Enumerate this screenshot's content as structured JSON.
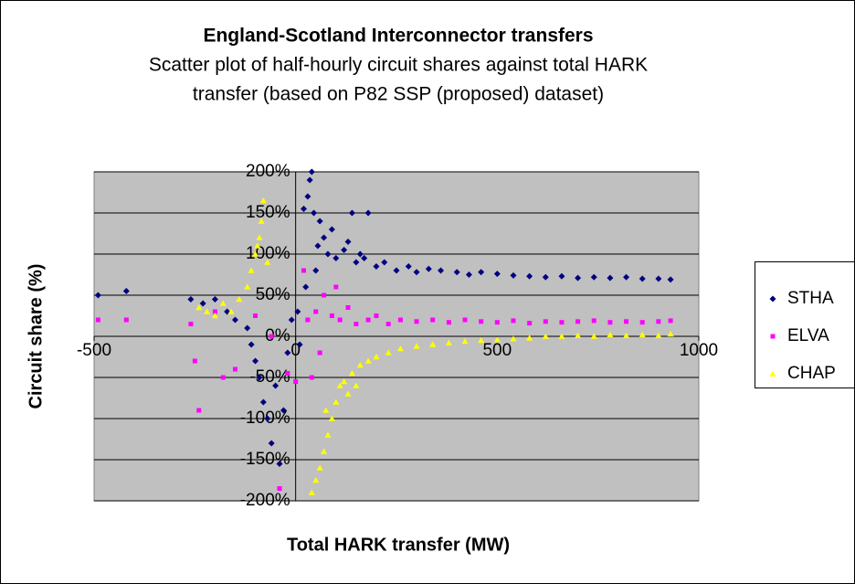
{
  "chart_data": {
    "type": "scatter",
    "title": "England-Scotland Interconnector transfers",
    "subtitle": [
      "Scatter plot of half-hourly circuit shares against total HARK",
      "transfer (based on P82 SSP (proposed) dataset)"
    ],
    "x_label": "Total HARK transfer (MW)",
    "y_label": "Circuit share (%)",
    "xlim": [
      -500,
      1000
    ],
    "xticks": [
      -500,
      0,
      500,
      1000
    ],
    "ylim": [
      -200,
      200
    ],
    "yticks": [
      {
        "value": 200,
        "label": "200%"
      },
      {
        "value": 150,
        "label": "150%"
      },
      {
        "value": 100,
        "label": "100%"
      },
      {
        "value": 50,
        "label": "50%"
      },
      {
        "value": 0,
        "label": "0%"
      },
      {
        "value": -50,
        "label": "-50%"
      },
      {
        "value": -100,
        "label": "-100%"
      },
      {
        "value": -150,
        "label": "-150%"
      },
      {
        "value": -200,
        "label": "-200%"
      }
    ],
    "grid": true,
    "legend": "right",
    "series": [
      {
        "name": "STHA",
        "color": "#000080",
        "marker": "diamond",
        "x": [
          -490,
          -420,
          -260,
          -230,
          -200,
          -170,
          -150,
          -120,
          -110,
          -100,
          -90,
          -80,
          -70,
          -60,
          -40,
          -50,
          -30,
          -20,
          40,
          35,
          30,
          45,
          20,
          60,
          70,
          55,
          80,
          90,
          100,
          120,
          130,
          150,
          160,
          180,
          200,
          220,
          250,
          280,
          300,
          330,
          360,
          400,
          430,
          460,
          500,
          540,
          580,
          620,
          660,
          700,
          740,
          780,
          820,
          860,
          900,
          930,
          10,
          5,
          25,
          -10,
          50,
          140,
          170
        ],
        "values": [
          50,
          55,
          45,
          40,
          45,
          30,
          20,
          10,
          -10,
          -30,
          -50,
          -80,
          -100,
          -130,
          -155,
          -60,
          -90,
          -20,
          200,
          190,
          170,
          150,
          155,
          140,
          120,
          110,
          100,
          130,
          95,
          105,
          115,
          90,
          100,
          150,
          85,
          90,
          80,
          85,
          78,
          82,
          80,
          78,
          75,
          78,
          76,
          74,
          73,
          72,
          73,
          71,
          72,
          71,
          72,
          70,
          70,
          69,
          -10,
          30,
          60,
          20,
          80,
          150,
          95
        ]
      },
      {
        "name": "ELVA",
        "color": "#ff00ff",
        "marker": "square",
        "x": [
          -490,
          -420,
          -260,
          -250,
          -240,
          -200,
          -180,
          -150,
          -100,
          -60,
          -40,
          -20,
          0,
          20,
          30,
          50,
          70,
          90,
          110,
          130,
          150,
          180,
          200,
          230,
          260,
          300,
          340,
          380,
          420,
          460,
          500,
          540,
          580,
          620,
          660,
          700,
          740,
          780,
          820,
          860,
          900,
          930,
          60,
          100,
          40
        ],
        "values": [
          20,
          20,
          15,
          -30,
          -90,
          30,
          -50,
          -40,
          25,
          0,
          -185,
          -45,
          -55,
          80,
          20,
          30,
          50,
          25,
          20,
          35,
          15,
          20,
          25,
          15,
          20,
          18,
          20,
          17,
          20,
          18,
          17,
          19,
          16,
          18,
          17,
          18,
          19,
          17,
          18,
          17,
          18,
          19,
          -20,
          60,
          -50
        ]
      },
      {
        "name": "CHAP",
        "color": "#ffff00",
        "marker": "triangle",
        "x": [
          -240,
          -220,
          -200,
          -180,
          -160,
          -140,
          -120,
          -110,
          -100,
          -95,
          -85,
          -80,
          -90,
          -70,
          40,
          50,
          60,
          70,
          80,
          90,
          100,
          110,
          120,
          140,
          160,
          180,
          200,
          230,
          260,
          300,
          340,
          380,
          420,
          460,
          500,
          540,
          580,
          620,
          660,
          700,
          740,
          780,
          820,
          860,
          900,
          930,
          130,
          150,
          75
        ],
        "values": [
          35,
          30,
          25,
          40,
          30,
          45,
          60,
          80,
          100,
          110,
          140,
          165,
          120,
          90,
          -190,
          -175,
          -160,
          -140,
          -120,
          -100,
          -80,
          -60,
          -55,
          -45,
          -35,
          -30,
          -25,
          -20,
          -15,
          -12,
          -10,
          -8,
          -6,
          -5,
          -4,
          -3,
          -2,
          0,
          0,
          1,
          0,
          2,
          1,
          2,
          1,
          3,
          -70,
          -60,
          -90
        ]
      }
    ]
  }
}
